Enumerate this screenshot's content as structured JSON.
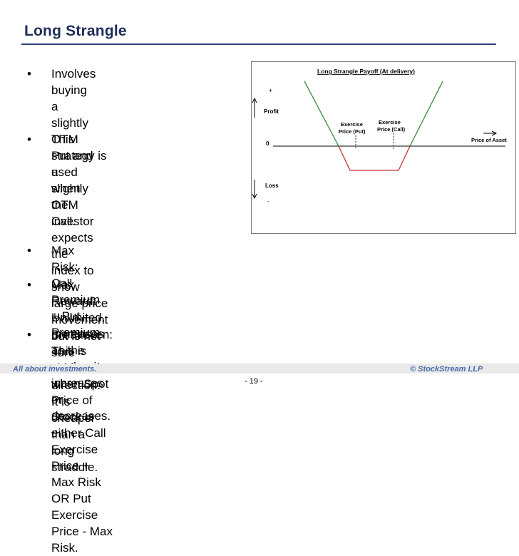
{
  "slide": {
    "title": "Long Strangle",
    "bullets": [
      "Involves buying a slightly\nOTM Put and a slightly OTM\nCall.",
      "This strategy is used when\nthe investor expects the\nindex to show large price\nmovement but is not sure\nabout the direction. It is\ncheaper than a long straddle.",
      "Max Risk: Call Premium + Put Premium",
      "Max Reward: Unlimited. Increases as the stock price increases or\ndecreases.",
      "Breakeven: This is achieved when Spot Price of Stock is either Call\nExercise Price + Max Risk OR Put Exercise Price - Max Risk."
    ],
    "bullet_glyph": "•"
  },
  "chart": {
    "title": "Long Strangle Payoff (At delivery)",
    "plus_label": "+",
    "profit_label": "Profit",
    "zero_label": "0",
    "loss_label": "Loss",
    "minus_label": "-",
    "x_axis_label": "Price of Asset",
    "put_label_1": "Exercise",
    "put_label_2": "Price (Put)",
    "call_label_1": "Exercise",
    "call_label_2": "Price (Call)",
    "profit_color": "#2e8b3a",
    "loss_color": "#c8323a"
  },
  "footer": {
    "left": "All about investments.",
    "right": "© StockStream LLP",
    "page": "- 19 -"
  }
}
